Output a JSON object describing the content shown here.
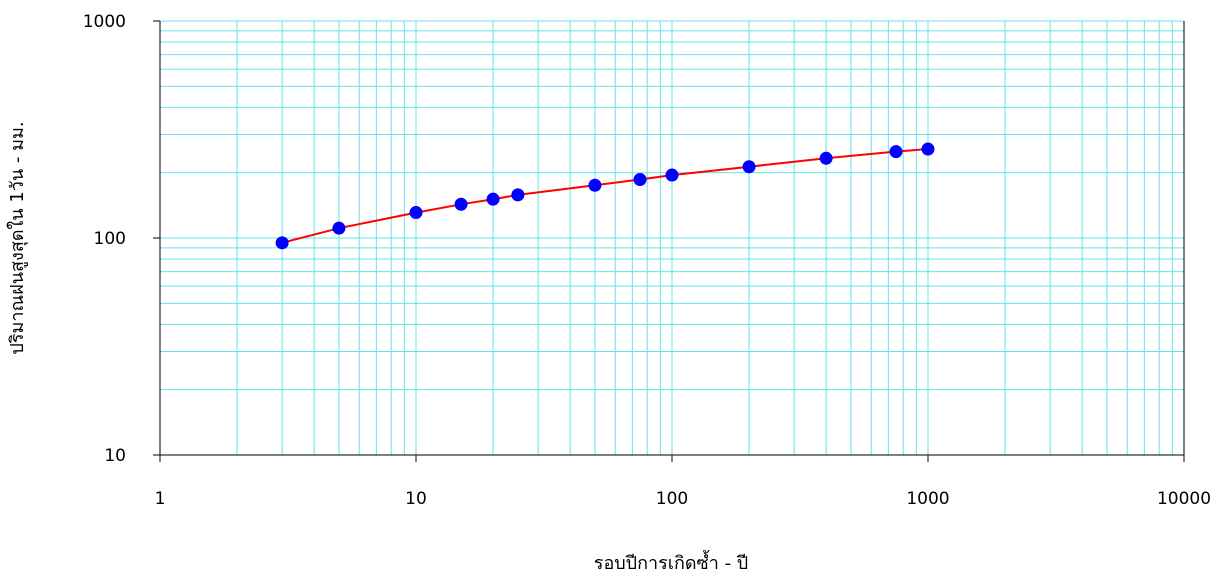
{
  "chart_data": {
    "type": "scatter",
    "title": "",
    "xlabel": "รอบปีการเกิดซ้ำ - ปี",
    "ylabel": "ปริมาณฝนสูงสุดใน 1วัน - มม.",
    "x_scale": "log",
    "y_scale": "log",
    "xlim": [
      1,
      10000
    ],
    "ylim": [
      10,
      1000
    ],
    "grid": true,
    "legend": "none",
    "x_ticks": [
      "1",
      "10",
      "100",
      "1000",
      "10000"
    ],
    "y_ticks": [
      "10",
      "100",
      "1000"
    ],
    "series": [
      {
        "mode": "line+markers",
        "x": [
          3,
          5,
          10,
          15,
          20,
          25,
          50,
          75,
          100,
          200,
          400,
          750,
          1000
        ],
        "y": [
          95,
          111,
          131,
          143,
          151,
          158,
          175,
          186,
          195,
          213,
          233,
          250,
          257
        ]
      }
    ],
    "colors": {
      "grid": "#66e3e8",
      "line": "#ff0000",
      "marker": "#0000ff",
      "axis": "#000000"
    }
  }
}
